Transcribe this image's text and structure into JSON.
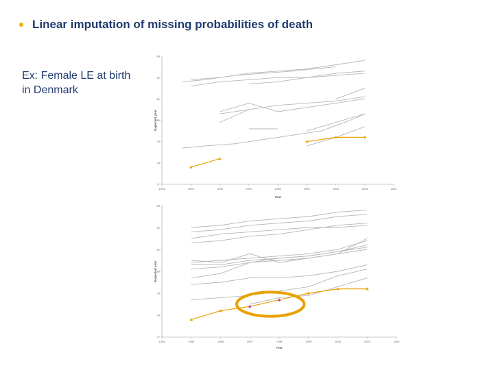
{
  "slide": {
    "heading": "Linear imputation of missing probabilities of death",
    "caption": "Ex: Female LE at birth in Denmark",
    "bullet_color": "#e9b200",
    "text_color": "#1f3a6e"
  },
  "chart_data": [
    {
      "type": "line",
      "title": "",
      "xlabel": "Year",
      "ylabel": "Expected year",
      "xlim": [
        1994,
        2002
      ],
      "ylim": [
        77,
        83
      ],
      "x_ticks": [
        1994,
        1995,
        1996,
        1997,
        1998,
        1999,
        2000,
        2001,
        2002
      ],
      "y_ticks": [
        77,
        78,
        79,
        80,
        81,
        82,
        83
      ],
      "grid": false,
      "colors": {
        "gray": "#b5b5b5",
        "highlight": "#e9a100"
      },
      "series": [
        {
          "kind": "gray",
          "points": [
            [
              1994.7,
              81.8
            ],
            [
              1995.5,
              81.9
            ],
            [
              1996.5,
              82.1
            ],
            [
              1997.5,
              82.2
            ],
            [
              1998.5,
              82.3
            ],
            [
              1999.2,
              82.4
            ],
            [
              2000,
              82.5
            ]
          ]
        },
        {
          "kind": "gray",
          "points": [
            [
              1995,
              81.9
            ],
            [
              1996,
              82.0
            ],
            [
              1997,
              82.2
            ],
            [
              1998,
              82.3
            ],
            [
              1999,
              82.4
            ],
            [
              2000,
              82.6
            ],
            [
              2001,
              82.8
            ]
          ]
        },
        {
          "kind": "gray",
          "points": [
            [
              1995,
              81.6
            ],
            [
              1996,
              81.8
            ],
            [
              1997,
              81.9
            ],
            [
              1998,
              82.0
            ],
            [
              1999,
              82.0
            ],
            [
              2000,
              82.1
            ],
            [
              2001,
              82.2
            ]
          ]
        },
        {
          "kind": "gray",
          "points": [
            [
              1997,
              81.7
            ],
            [
              1998,
              81.8
            ],
            [
              1999,
              82.0
            ],
            [
              2000,
              82.2
            ],
            [
              2001,
              82.3
            ]
          ]
        },
        {
          "kind": "gray",
          "points": [
            [
              1996,
              80.4
            ],
            [
              1997,
              80.8
            ],
            [
              1998,
              80.4
            ],
            [
              1999,
              80.6
            ],
            [
              2000,
              80.8
            ],
            [
              2001,
              81.0
            ]
          ]
        },
        {
          "kind": "gray",
          "points": [
            [
              1996,
              80.3
            ],
            [
              1997,
              80.5
            ],
            [
              1998,
              80.7
            ],
            [
              1999,
              80.8
            ]
          ]
        },
        {
          "kind": "gray",
          "points": [
            [
              1999,
              80.8
            ],
            [
              2000,
              80.9
            ],
            [
              2001,
              81.1
            ]
          ]
        },
        {
          "kind": "gray",
          "points": [
            [
              2000,
              81.0
            ],
            [
              2001,
              81.5
            ]
          ]
        },
        {
          "kind": "gray",
          "points": [
            [
              1996,
              79.9
            ],
            [
              1997,
              80.5
            ]
          ]
        },
        {
          "kind": "gray",
          "points": [
            [
              1997,
              79.6
            ],
            [
              1998,
              79.6
            ]
          ]
        },
        {
          "kind": "gray",
          "points": [
            [
              1999,
              79.5
            ],
            [
              2000,
              79.9
            ],
            [
              2001,
              80.3
            ]
          ]
        },
        {
          "kind": "gray",
          "points": [
            [
              1994.7,
              78.7
            ],
            [
              1995.5,
              78.8
            ],
            [
              1996.5,
              78.9
            ],
            [
              1997.5,
              79.1
            ],
            [
              1998.5,
              79.3
            ],
            [
              1999.5,
              79.5
            ],
            [
              2000.5,
              80.0
            ],
            [
              2001,
              80.3
            ]
          ]
        },
        {
          "kind": "gray",
          "points": [
            [
              1999,
              78.8
            ],
            [
              2000,
              79.2
            ],
            [
              2001,
              79.7
            ]
          ]
        },
        {
          "kind": "highlight",
          "marker": "triangle",
          "marker_color": "#e9a100",
          "points": [
            [
              1995,
              77.8
            ],
            [
              1996,
              78.2
            ]
          ]
        },
        {
          "kind": "highlight",
          "marker": "triangle",
          "marker_color": "#e9a100",
          "points": [
            [
              1999,
              79.0
            ],
            [
              2000,
              79.2
            ],
            [
              2001,
              79.2
            ]
          ]
        }
      ]
    },
    {
      "type": "line",
      "title": "",
      "xlabel": "Year",
      "ylabel": "Expected year",
      "xlim": [
        1994,
        2002
      ],
      "ylim": [
        77,
        83
      ],
      "x_ticks": [
        1994,
        1995,
        1996,
        1997,
        1998,
        1999,
        2000,
        2001,
        2002
      ],
      "y_ticks": [
        77,
        78,
        79,
        80,
        81,
        82,
        83
      ],
      "grid": false,
      "colors": {
        "gray": "#b5b5b5",
        "highlight": "#e9a100",
        "imputed": "#b12fd0",
        "circle": "#e9a100"
      },
      "series": [
        {
          "kind": "gray",
          "points": [
            [
              1995,
              82.0
            ],
            [
              1996,
              82.1
            ],
            [
              1997,
              82.3
            ],
            [
              1998,
              82.4
            ],
            [
              1999,
              82.5
            ],
            [
              2000,
              82.7
            ],
            [
              2001,
              82.8
            ]
          ]
        },
        {
          "kind": "gray",
          "points": [
            [
              1995,
              81.8
            ],
            [
              1996,
              81.9
            ],
            [
              1997,
              82.1
            ],
            [
              1998,
              82.2
            ],
            [
              1999,
              82.3
            ],
            [
              2000,
              82.5
            ],
            [
              2001,
              82.6
            ]
          ]
        },
        {
          "kind": "gray",
          "points": [
            [
              1995,
              81.5
            ],
            [
              1996,
              81.7
            ],
            [
              1997,
              81.8
            ],
            [
              1998,
              81.9
            ],
            [
              1999,
              82.0
            ],
            [
              2000,
              82.0
            ],
            [
              2001,
              82.1
            ]
          ]
        },
        {
          "kind": "gray",
          "points": [
            [
              1995,
              81.3
            ],
            [
              1996,
              81.4
            ],
            [
              1997,
              81.6
            ],
            [
              1998,
              81.7
            ],
            [
              1999,
              81.9
            ],
            [
              2000,
              82.1
            ],
            [
              2001,
              82.2
            ]
          ]
        },
        {
          "kind": "gray",
          "points": [
            [
              1995,
              80.5
            ],
            [
              1996,
              80.4
            ],
            [
              1997,
              80.8
            ],
            [
              1998,
              80.4
            ],
            [
              1999,
              80.6
            ],
            [
              2000,
              80.8
            ],
            [
              2001,
              81.0
            ]
          ]
        },
        {
          "kind": "gray",
          "points": [
            [
              1995,
              80.4
            ],
            [
              1996,
              80.5
            ],
            [
              1997,
              80.6
            ],
            [
              1998,
              80.7
            ],
            [
              1999,
              80.8
            ],
            [
              2000,
              81.0
            ],
            [
              2001,
              81.4
            ]
          ]
        },
        {
          "kind": "gray",
          "points": [
            [
              1995,
              80.3
            ],
            [
              1996,
              80.3
            ],
            [
              1997,
              80.5
            ],
            [
              1998,
              80.6
            ],
            [
              1999,
              80.7
            ],
            [
              2000,
              80.9
            ],
            [
              2001,
              81.2
            ]
          ]
        },
        {
          "kind": "gray",
          "points": [
            [
              1995,
              80.1
            ],
            [
              1996,
              80.2
            ],
            [
              1997,
              80.4
            ],
            [
              1998,
              80.5
            ],
            [
              1999,
              80.6
            ],
            [
              2000,
              80.8
            ],
            [
              2001,
              81.5
            ]
          ]
        },
        {
          "kind": "gray",
          "points": [
            [
              1995,
              79.7
            ],
            [
              1996,
              79.9
            ],
            [
              1997,
              80.4
            ],
            [
              1998,
              80.6
            ],
            [
              1999,
              80.7
            ],
            [
              2000,
              80.9
            ],
            [
              2001,
              81.1
            ]
          ]
        },
        {
          "kind": "gray",
          "points": [
            [
              1995,
              79.4
            ],
            [
              1996,
              79.5
            ],
            [
              1997,
              79.7
            ],
            [
              1998,
              79.7
            ],
            [
              1999,
              79.8
            ],
            [
              2000,
              80.0
            ],
            [
              2001,
              80.3
            ]
          ]
        },
        {
          "kind": "gray",
          "points": [
            [
              1995,
              78.7
            ],
            [
              1996,
              78.8
            ],
            [
              1997,
              78.9
            ],
            [
              1998,
              79.1
            ],
            [
              1999,
              79.3
            ],
            [
              2000,
              79.8
            ],
            [
              2001,
              80.1
            ]
          ]
        },
        {
          "kind": "gray",
          "points": [
            [
              1997,
              78.5
            ],
            [
              1998,
              78.8
            ],
            [
              1999,
              78.9
            ],
            [
              2000,
              79.3
            ],
            [
              2001,
              79.7
            ]
          ]
        },
        {
          "kind": "highlight",
          "marker": "triangle",
          "marker_color": "#e9a100",
          "points": [
            [
              1995,
              77.8
            ],
            [
              1996,
              78.2
            ],
            [
              1997,
              78.4
            ],
            [
              1998,
              78.7
            ],
            [
              1999,
              79.0
            ],
            [
              2000,
              79.2
            ],
            [
              2001,
              79.2
            ]
          ]
        },
        {
          "kind": "imputed",
          "marker": "triangle",
          "marker_color": "#b12fd0",
          "points": [
            [
              1997,
              78.4
            ],
            [
              1998,
              78.7
            ]
          ]
        }
      ],
      "annotation": {
        "type": "ellipse",
        "center": [
          1997.7,
          78.5
        ],
        "rx_years": 1.15,
        "ry_years": 0.55
      }
    }
  ]
}
